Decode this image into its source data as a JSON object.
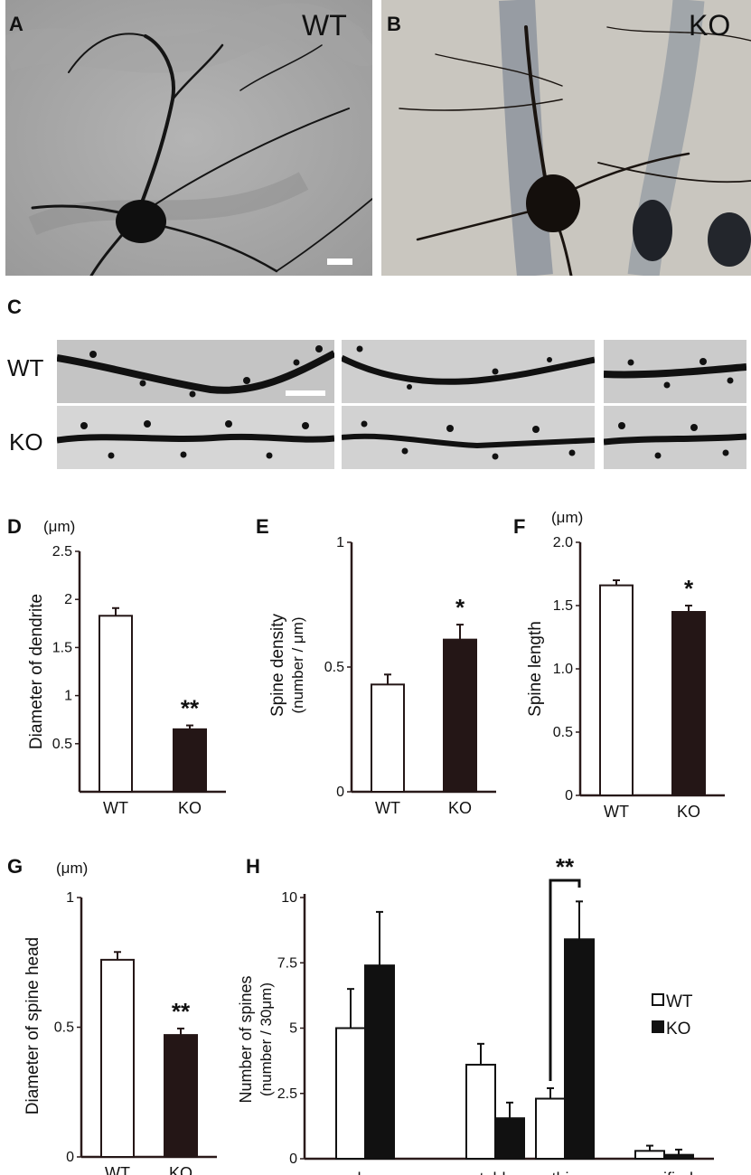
{
  "panels": {
    "A": {
      "letter": "A",
      "tag": "WT"
    },
    "B": {
      "letter": "B",
      "tag": "KO"
    },
    "C": {
      "letter": "C",
      "row1": "WT",
      "row2": "KO"
    }
  },
  "chart_data": [
    {
      "id": "D",
      "letter": "D",
      "type": "bar",
      "unit": "(μm)",
      "ylabel": "Diameter of dendrite",
      "categories": [
        "WT",
        "KO"
      ],
      "values": [
        1.83,
        0.65
      ],
      "errors": [
        0.08,
        0.04
      ],
      "ylim": [
        0,
        2.5
      ],
      "ticks": [
        0.5,
        1,
        1.5,
        2,
        2.5
      ],
      "tick_labels": [
        "0.5",
        "1",
        "1.5",
        "2",
        "2.5"
      ],
      "significance": "**"
    },
    {
      "id": "E",
      "letter": "E",
      "type": "bar",
      "unit": "",
      "ylabel": "Spine density",
      "ylabel2": "(number / μm)",
      "categories": [
        "WT",
        "KO"
      ],
      "values": [
        0.43,
        0.61
      ],
      "errors": [
        0.04,
        0.06
      ],
      "ylim": [
        0,
        1
      ],
      "ticks": [
        0,
        0.5,
        1
      ],
      "tick_labels": [
        "0",
        "0.5",
        "1"
      ],
      "significance": "*"
    },
    {
      "id": "F",
      "letter": "F",
      "type": "bar",
      "unit": "(μm)",
      "ylabel": "Spine length",
      "categories": [
        "WT",
        "KO"
      ],
      "values": [
        1.66,
        1.45
      ],
      "errors": [
        0.04,
        0.05
      ],
      "ylim": [
        0,
        2.0
      ],
      "ticks": [
        0,
        0.5,
        1.0,
        1.5,
        2.0
      ],
      "tick_labels": [
        "0",
        "0.5",
        "1.0",
        "1.5",
        "2.0"
      ],
      "significance": "*"
    },
    {
      "id": "G",
      "letter": "G",
      "type": "bar",
      "unit": "(μm)",
      "ylabel": "Diameter of spine head",
      "categories": [
        "WT",
        "KO"
      ],
      "values": [
        0.76,
        0.47
      ],
      "errors": [
        0.03,
        0.025
      ],
      "ylim": [
        0,
        1
      ],
      "ticks": [
        0,
        0.5,
        1
      ],
      "tick_labels": [
        "0",
        "0.5",
        "1"
      ],
      "significance": "**"
    },
    {
      "id": "H",
      "letter": "H",
      "type": "bar",
      "ylabel": "Number of spines",
      "ylabel2": "(number / 30μm)",
      "categories": [
        "mushroom",
        "stubby",
        "thin",
        "ramified"
      ],
      "series": [
        {
          "name": "WT",
          "values": [
            5.0,
            3.6,
            2.3,
            0.3
          ],
          "errors": [
            1.5,
            0.8,
            0.4,
            0.2
          ]
        },
        {
          "name": "KO",
          "values": [
            7.4,
            1.55,
            8.4,
            0.15
          ],
          "errors": [
            2.05,
            0.6,
            1.45,
            0.2
          ]
        }
      ],
      "ylim": [
        0,
        10
      ],
      "ticks": [
        0,
        2.5,
        5,
        7.5,
        10
      ],
      "tick_labels": [
        "0",
        "2.5",
        "5",
        "7.5",
        "10"
      ],
      "significance": "**"
    }
  ]
}
